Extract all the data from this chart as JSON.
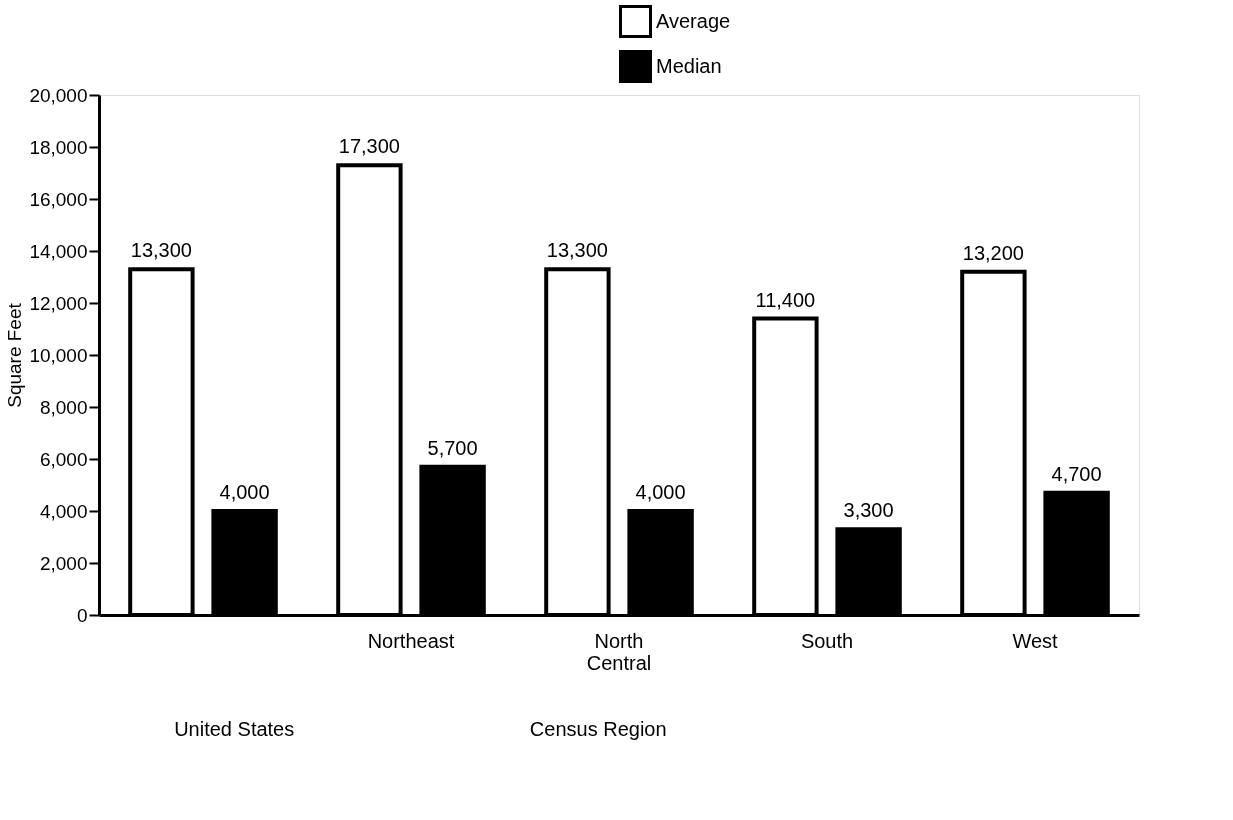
{
  "chart_data": {
    "type": "bar",
    "ylabel": "Square Feet",
    "categories": [
      null,
      "Northeast",
      "North Central",
      "South",
      "West"
    ],
    "series": [
      {
        "name": "Average",
        "color": "#ffffff",
        "values": [
          13300,
          17300,
          13300,
          11400,
          13200
        ],
        "value_labels": [
          "13,300",
          "17,300",
          "13,300",
          "11,400",
          "13,200"
        ]
      },
      {
        "name": "Median",
        "color": "#000000",
        "values": [
          4000,
          5700,
          4000,
          3300,
          4700
        ],
        "value_labels": [
          "4,000",
          "5,700",
          "4,000",
          "3,300",
          "4,700"
        ]
      }
    ],
    "ylim": [
      0,
      20000
    ],
    "yticks": [
      {
        "value": 0,
        "label": "0"
      },
      {
        "value": 2000,
        "label": "2,000"
      },
      {
        "value": 4000,
        "label": "4,000"
      },
      {
        "value": 6000,
        "label": "6,000"
      },
      {
        "value": 8000,
        "label": "8,000"
      },
      {
        "value": 10000,
        "label": "10,000"
      },
      {
        "value": 12000,
        "label": "12,000"
      },
      {
        "value": 14000,
        "label": "14,000"
      },
      {
        "value": 16000,
        "label": "16,000"
      },
      {
        "value": 18000,
        "label": "18,000"
      },
      {
        "value": 20000,
        "label": "20,000"
      }
    ],
    "grid": false,
    "legend": "top",
    "annotations": [
      "United States",
      "Census Region"
    ]
  }
}
